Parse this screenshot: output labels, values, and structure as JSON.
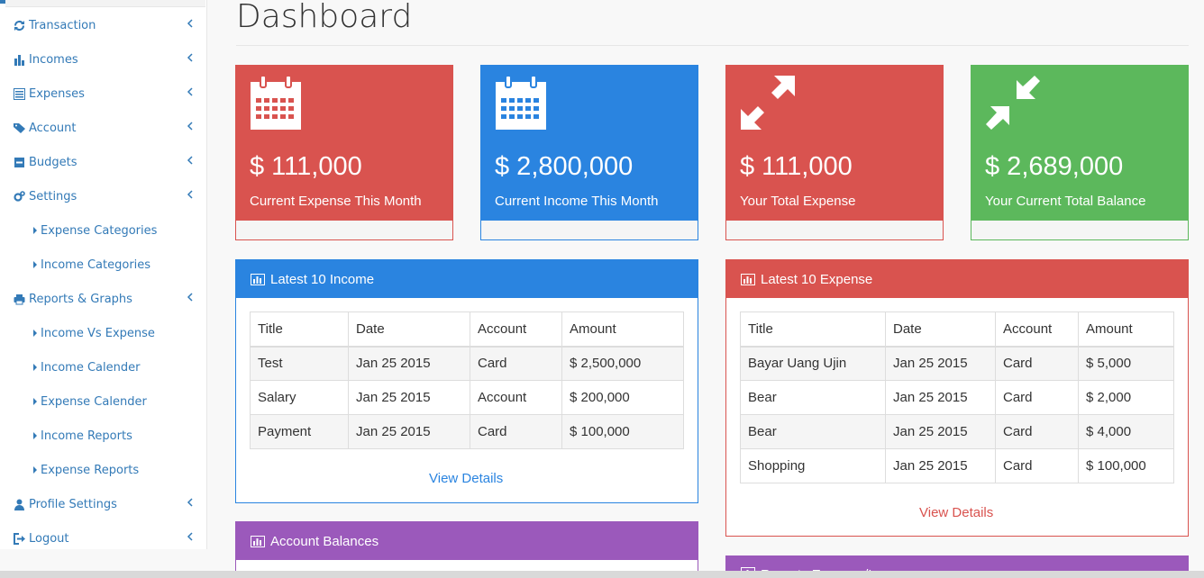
{
  "page": {
    "title": "Dashboard"
  },
  "sidebar": {
    "items": [
      {
        "label": "Transaction",
        "icon": "refresh-icon"
      },
      {
        "label": "Incomes",
        "icon": "bar-chart-icon"
      },
      {
        "label": "Expenses",
        "icon": "list-alt-icon"
      },
      {
        "label": "Account",
        "icon": "tags-icon"
      },
      {
        "label": "Budgets",
        "icon": "minus-square-icon"
      },
      {
        "label": "Settings",
        "icon": "cogs-icon"
      }
    ],
    "settings_sub": [
      "Expense Categories",
      "Income Categories"
    ],
    "reports": {
      "label": "Reports & Graphs",
      "icon": "print-icon"
    },
    "reports_sub": [
      "Income Vs Expense",
      "Income Calender",
      "Expense Calender",
      "Income Reports",
      "Expense Reports"
    ],
    "profile": {
      "label": "Profile Settings",
      "icon": "user-icon"
    },
    "logout": {
      "label": "Logout",
      "icon": "sign-out-icon"
    }
  },
  "stats": [
    {
      "value": "$ 111,000",
      "label": "Current Expense This Month",
      "color": "#d9534f",
      "icon": "calendar-icon"
    },
    {
      "value": "$ 2,800,000",
      "label": "Current Income This Month",
      "color": "#2a84e0",
      "icon": "calendar-icon"
    },
    {
      "value": "$ 111,000",
      "label": "Your Total Expense",
      "color": "#d9534f",
      "icon": "expand-icon"
    },
    {
      "value": "$ 2,689,000",
      "label": "Your Current Total Balance",
      "color": "#5cb85c",
      "icon": "compress-icon"
    }
  ],
  "income_panel": {
    "title": "Latest 10 Income",
    "columns": [
      "Title",
      "Date",
      "Account",
      "Amount"
    ],
    "rows": [
      [
        "Test",
        "Jan 25 2015",
        "Card",
        "$ 2,500,000"
      ],
      [
        "Salary",
        "Jan 25 2015",
        "Account",
        "$ 200,000"
      ],
      [
        "Payment",
        "Jan 25 2015",
        "Card",
        "$ 100,000"
      ]
    ],
    "link": "View Details"
  },
  "expense_panel": {
    "title": "Latest 10 Expense",
    "columns": [
      "Title",
      "Date",
      "Account",
      "Amount"
    ],
    "rows": [
      [
        "Bayar Uang Ujin",
        "Jan 25 2015",
        "Card",
        "$ 5,000"
      ],
      [
        "Bear",
        "Jan 25 2015",
        "Card",
        "$ 2,000"
      ],
      [
        "Bear",
        "Jan 25 2015",
        "Card",
        "$ 4,000"
      ],
      [
        "Shopping",
        "Jan 25 2015",
        "Card",
        "$ 100,000"
      ]
    ],
    "link": "View Details"
  },
  "account_panel": {
    "title": "Account Balances"
  },
  "reports_panel": {
    "title": "Reports Expense/Income"
  },
  "colors": {
    "blue": "#2a84e0",
    "red": "#d9534f",
    "green": "#5cb85c",
    "purple": "#9b59bb",
    "link": "#337ab7"
  }
}
